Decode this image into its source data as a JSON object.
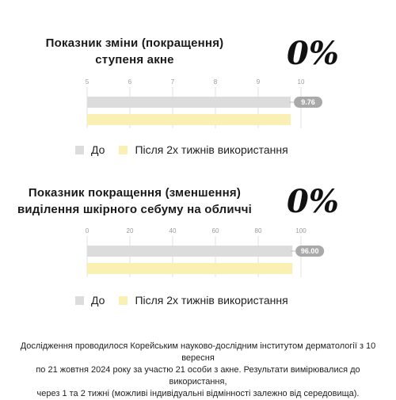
{
  "charts": [
    {
      "title_line1": "Показник зміни (покращення)",
      "title_line2": "ступеня акне",
      "percent": "0%",
      "value_label": "9.76"
    },
    {
      "title_line1": "Показник покращення (зменшення)",
      "title_line2": "виділення шкірного себуму на обличчі",
      "percent": "0%",
      "value_label": "96.00"
    }
  ],
  "legend": {
    "before": "До",
    "after": "Після 2х тижнів використання"
  },
  "footnote": {
    "line1": "Дослідження проводилося Корейським науково-дослідним інститутом дерматології з 10 вересня",
    "line2": "по 21 жовтня 2024 року за участю 21 особи з акне. Результати вимірювалися до використання,",
    "line3": "через 1 та 2 тижні (можливі індивідуальні відмінності залежно від середовища)."
  },
  "colors": {
    "before": "#dcdcdc",
    "after": "#fbf0b4",
    "label_bg": "#a9a9a9",
    "grid": "#e2e2e2"
  },
  "chart_data": [
    {
      "type": "bar",
      "orientation": "horizontal",
      "categories": [
        "До",
        "Після 2х тижнів використання"
      ],
      "values": [
        9.76,
        9.76
      ],
      "xlim": [
        5,
        10
      ],
      "xticks": [
        5,
        6,
        7,
        8,
        9,
        10
      ],
      "tick_labels": [
        "5",
        "6",
        "7",
        "8",
        "9",
        "10"
      ],
      "grid": true
    },
    {
      "type": "bar",
      "orientation": "horizontal",
      "categories": [
        "До",
        "Після 2х тижнів використання"
      ],
      "values": [
        96.0,
        96.0
      ],
      "xlim": [
        0,
        100
      ],
      "xticks": [
        0,
        20,
        40,
        60,
        80,
        100
      ],
      "tick_labels": [
        "0",
        "20",
        "40",
        "60",
        "80",
        "100"
      ],
      "grid": true
    }
  ]
}
